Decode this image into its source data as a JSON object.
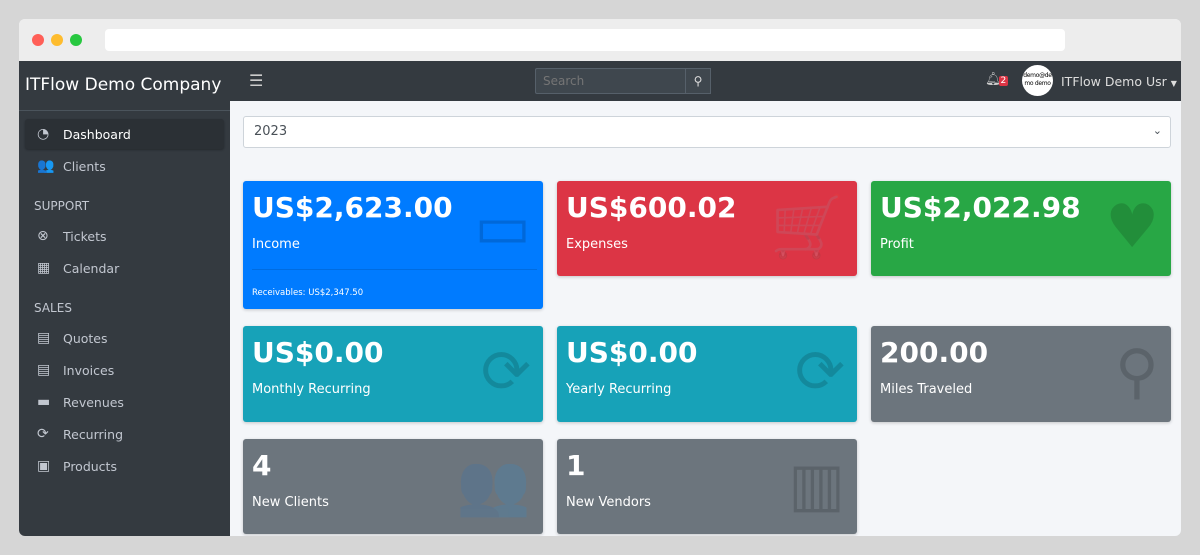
{
  "sidebar": {
    "brand": "ITFlow Demo Company",
    "items": [
      {
        "label": "Dashboard",
        "icon": "tachometer-icon",
        "glyph": "◔"
      },
      {
        "label": "Clients",
        "icon": "users-icon",
        "glyph": "👥"
      }
    ],
    "support_header": "SUPPORT",
    "support": [
      {
        "label": "Tickets",
        "icon": "life-ring-icon",
        "glyph": "⊗"
      },
      {
        "label": "Calendar",
        "icon": "calendar-icon",
        "glyph": "▦"
      }
    ],
    "sales_header": "SALES",
    "sales": [
      {
        "label": "Quotes",
        "icon": "file-icon",
        "glyph": "▤"
      },
      {
        "label": "Invoices",
        "icon": "invoice-icon",
        "glyph": "▤"
      },
      {
        "label": "Revenues",
        "icon": "credit-card-icon",
        "glyph": "▬"
      },
      {
        "label": "Recurring",
        "icon": "sync-icon",
        "glyph": "⟳"
      },
      {
        "label": "Products",
        "icon": "box-icon",
        "glyph": "▣"
      }
    ]
  },
  "topbar": {
    "search_placeholder": "Search",
    "notification_count": "2",
    "avatar_text": "demo@demo demo",
    "user": "ITFlow Demo Usr"
  },
  "year": "2023",
  "cards": [
    {
      "value": "US$2,623.00",
      "label": "Income",
      "footer": "Receivables: US$2,347.50",
      "color": "#007bff",
      "glyph": "▭"
    },
    {
      "value": "US$600.02",
      "label": "Expenses",
      "color": "#dc3545",
      "glyph": "🛒"
    },
    {
      "value": "US$2,022.98",
      "label": "Profit",
      "color": "#28a745",
      "glyph": "♥"
    },
    {
      "value": "US$0.00",
      "label": "Monthly Recurring",
      "color": "#17a2b8",
      "glyph": "⟳"
    },
    {
      "value": "US$0.00",
      "label": "Yearly Recurring",
      "color": "#17a2b8",
      "glyph": "⟳"
    },
    {
      "value": "200.00",
      "label": "Miles Traveled",
      "color": "#6c757d",
      "glyph": "⚲"
    },
    {
      "value": "4",
      "label": "New Clients",
      "color": "#6c757d",
      "glyph": "👥"
    },
    {
      "value": "1",
      "label": "New Vendors",
      "color": "#6c757d",
      "glyph": "▥"
    }
  ]
}
